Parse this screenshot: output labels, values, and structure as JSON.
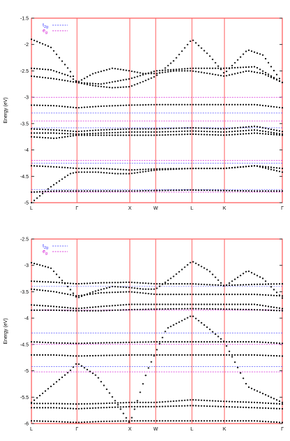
{
  "colors": {
    "frame": "#ff3030",
    "sympoint": "#ff6060",
    "bands": "#000000",
    "t2g": "#3a3aff",
    "eg": "#d000d0",
    "text": "#000000"
  },
  "chart_data": [
    {
      "type": "scatter",
      "ylabel": "Energy (eV)",
      "ylim": [
        -5,
        -1.5
      ],
      "yticks": [
        -5,
        -4.5,
        -4,
        -3.5,
        -3,
        -2.5,
        -2,
        -1.5
      ],
      "ytick_labels": [
        "-5",
        "-4.5",
        "-4",
        "-3.5",
        "-3",
        "-2.5",
        "-2",
        "-1.5"
      ],
      "xlim": [
        0,
        6.5
      ],
      "xticks": [
        0,
        1.18,
        2.55,
        3.22,
        4.16,
        5.0,
        6.5
      ],
      "xtick_labels": [
        "L",
        "Γ",
        "X",
        "W",
        "L",
        "K",
        "Γ"
      ],
      "legend": [
        {
          "label": "t",
          "sub": "2g",
          "color_key": "t2g"
        },
        {
          "label": "e",
          "sub": "g",
          "color_key": "eg"
        }
      ],
      "t2g_levels": [
        -3.3,
        -3.58,
        -4.25,
        -4.75
      ],
      "eg_levels": [
        -3.0,
        -3.45,
        -4.2,
        -4.8
      ],
      "series": [
        {
          "x": [
            0,
            0.5,
            1.0,
            1.18,
            1.6,
            2.1,
            2.55,
            2.9,
            3.22,
            3.7,
            4.16,
            4.6,
            5.0,
            5.6,
            6.0,
            6.5
          ],
          "y": [
            -1.9,
            -2.05,
            -2.5,
            -2.72,
            -2.78,
            -2.82,
            -2.8,
            -2.7,
            -2.6,
            -2.3,
            -1.9,
            -2.2,
            -2.55,
            -2.1,
            -2.2,
            -2.72
          ]
        },
        {
          "x": [
            0,
            0.5,
            1.0,
            1.18,
            1.6,
            2.1,
            2.55,
            2.9,
            3.22,
            3.7,
            4.16,
            4.6,
            5.0,
            5.6,
            6.0,
            6.5
          ],
          "y": [
            -2.45,
            -2.48,
            -2.6,
            -2.72,
            -2.55,
            -2.45,
            -2.5,
            -2.55,
            -2.55,
            -2.5,
            -2.5,
            -2.55,
            -2.6,
            -2.5,
            -2.55,
            -2.72
          ]
        },
        {
          "x": [
            0,
            0.6,
            1.18,
            1.8,
            2.55,
            3.22,
            4.16,
            5.0,
            5.8,
            6.5
          ],
          "y": [
            -2.6,
            -2.65,
            -2.72,
            -2.75,
            -2.65,
            -2.5,
            -2.45,
            -2.45,
            -2.42,
            -2.72
          ]
        },
        {
          "x": [
            0,
            0.6,
            1.18,
            1.8,
            2.55,
            3.22,
            4.16,
            5.0,
            5.8,
            6.5
          ],
          "y": [
            -3.15,
            -3.16,
            -3.2,
            -3.17,
            -3.15,
            -3.14,
            -3.14,
            -3.14,
            -3.14,
            -3.2
          ]
        },
        {
          "x": [
            0,
            0.6,
            1.18,
            1.8,
            2.55,
            3.22,
            4.16,
            5.0,
            5.8,
            6.5
          ],
          "y": [
            -3.6,
            -3.62,
            -3.65,
            -3.62,
            -3.6,
            -3.6,
            -3.58,
            -3.6,
            -3.55,
            -3.65
          ]
        },
        {
          "x": [
            0,
            0.6,
            1.18,
            1.8,
            2.55,
            3.22,
            4.16,
            5.0,
            5.8,
            6.5
          ],
          "y": [
            -3.68,
            -3.68,
            -3.7,
            -3.68,
            -3.66,
            -3.66,
            -3.64,
            -3.66,
            -3.62,
            -3.7
          ]
        },
        {
          "x": [
            0,
            0.6,
            1.18,
            1.8,
            2.55,
            3.22,
            4.16,
            5.0,
            5.8,
            6.5
          ],
          "y": [
            -3.75,
            -3.78,
            -3.72,
            -3.72,
            -3.72,
            -3.72,
            -3.7,
            -3.72,
            -3.68,
            -3.72
          ]
        },
        {
          "x": [
            0,
            0.6,
            1.18,
            1.8,
            2.55,
            3.22,
            4.16,
            5.0,
            5.8,
            6.5
          ],
          "y": [
            -4.3,
            -4.32,
            -4.35,
            -4.35,
            -4.38,
            -4.36,
            -4.35,
            -4.35,
            -4.3,
            -4.35
          ]
        },
        {
          "x": [
            0,
            0.6,
            1.18,
            1.8,
            2.55,
            3.22,
            4.16,
            5.0,
            5.8,
            6.5
          ],
          "y": [
            -4.8,
            -4.78,
            -4.78,
            -4.78,
            -4.78,
            -4.77,
            -4.76,
            -4.77,
            -4.78,
            -4.78
          ]
        },
        {
          "x": [
            0,
            0.5,
            1.0,
            1.18,
            1.7,
            2.2,
            2.55,
            3.22,
            4.16,
            5.0,
            5.8,
            6.5
          ],
          "y": [
            -5.0,
            -4.7,
            -4.45,
            -4.42,
            -4.42,
            -4.45,
            -4.45,
            -4.38,
            -4.35,
            -4.35,
            -4.3,
            -4.42
          ]
        }
      ]
    },
    {
      "type": "scatter",
      "ylabel": "Energy (eV)",
      "ylim": [
        -6,
        -2.5
      ],
      "yticks": [
        -6,
        -5.5,
        -5,
        -4.5,
        -4,
        -3.5,
        -3,
        -2.5
      ],
      "ytick_labels": [
        "-6",
        "-5.5",
        "-5",
        "-4.5",
        "-4",
        "-3.5",
        "-3",
        "-2.5"
      ],
      "xlim": [
        0,
        6.5
      ],
      "xticks": [
        0,
        1.18,
        2.55,
        3.22,
        4.16,
        5.0,
        6.5
      ],
      "xtick_labels": [
        "L",
        "Γ",
        "X",
        "W",
        "L",
        "K",
        "Γ"
      ],
      "legend": [
        {
          "label": "t",
          "sub": "2g",
          "color_key": "t2g"
        },
        {
          "label": "e",
          "sub": "g",
          "color_key": "eg"
        }
      ],
      "t2g_levels": [
        -3.4,
        -4.28,
        -4.92
      ],
      "eg_levels": [
        -3.85,
        -4.5,
        -5.02
      ],
      "series": [
        {
          "x": [
            0,
            0.5,
            1.0,
            1.18,
            1.6,
            2.1,
            2.55,
            2.9,
            3.22,
            3.7,
            4.16,
            4.6,
            5.0,
            5.6,
            6.0,
            6.5
          ],
          "y": [
            -2.95,
            -3.05,
            -3.45,
            -3.62,
            -3.5,
            -3.4,
            -3.42,
            -3.45,
            -3.45,
            -3.2,
            -2.92,
            -3.1,
            -3.4,
            -3.1,
            -3.25,
            -3.62
          ]
        },
        {
          "x": [
            0,
            0.6,
            1.18,
            1.8,
            2.55,
            3.22,
            4.16,
            5.0,
            5.8,
            6.5
          ],
          "y": [
            -3.3,
            -3.32,
            -3.35,
            -3.33,
            -3.32,
            -3.35,
            -3.35,
            -3.38,
            -3.36,
            -3.35
          ]
        },
        {
          "x": [
            0,
            0.6,
            1.18,
            1.8,
            2.55,
            3.22,
            4.16,
            5.0,
            5.8,
            6.5
          ],
          "y": [
            -3.45,
            -3.5,
            -3.58,
            -3.52,
            -3.5,
            -3.55,
            -3.55,
            -3.55,
            -3.55,
            -3.58
          ]
        },
        {
          "x": [
            0,
            0.6,
            1.18,
            1.8,
            2.55,
            3.22,
            4.16,
            5.0,
            5.8,
            6.5
          ],
          "y": [
            -3.75,
            -3.78,
            -3.82,
            -3.78,
            -3.74,
            -3.74,
            -3.74,
            -3.74,
            -3.74,
            -3.82
          ]
        },
        {
          "x": [
            0,
            0.6,
            1.18,
            1.8,
            2.55,
            3.22,
            4.16,
            5.0,
            5.8,
            6.5
          ],
          "y": [
            -3.85,
            -3.85,
            -3.86,
            -3.86,
            -3.84,
            -3.83,
            -3.82,
            -3.83,
            -3.84,
            -3.86
          ]
        },
        {
          "x": [
            0,
            0.6,
            1.18,
            1.8,
            2.55,
            3.22,
            4.16,
            5.0,
            5.8,
            6.5
          ],
          "y": [
            -4.45,
            -4.47,
            -4.48,
            -4.47,
            -4.46,
            -4.45,
            -4.45,
            -4.45,
            -4.45,
            -4.48
          ]
        },
        {
          "x": [
            0,
            0.6,
            1.18,
            1.8,
            2.55,
            3.22,
            4.16,
            5.0,
            5.8,
            6.5
          ],
          "y": [
            -4.7,
            -4.7,
            -4.72,
            -4.71,
            -4.7,
            -4.7,
            -4.7,
            -4.7,
            -4.7,
            -4.72
          ]
        },
        {
          "x": [
            0,
            0.5,
            1.0,
            1.18,
            1.7,
            2.2,
            2.55,
            3.0,
            3.5,
            4.16,
            4.6,
            5.0,
            5.6,
            6.5
          ],
          "y": [
            -5.6,
            -5.3,
            -5.0,
            -4.85,
            -5.1,
            -5.6,
            -6.0,
            -5.0,
            -4.2,
            -3.95,
            -4.2,
            -4.45,
            -5.3,
            -5.6
          ]
        },
        {
          "x": [
            0,
            0.6,
            1.18,
            1.8,
            2.55,
            3.22,
            4.16,
            5.0,
            5.8,
            6.5
          ],
          "y": [
            -5.62,
            -5.62,
            -5.63,
            -5.62,
            -5.6,
            -5.6,
            -5.55,
            -5.58,
            -5.6,
            -5.63
          ]
        },
        {
          "x": [
            0,
            0.6,
            1.18,
            1.8,
            2.55,
            3.22,
            4.16,
            5.0,
            5.8,
            6.5
          ],
          "y": [
            -5.7,
            -5.7,
            -5.72,
            -5.7,
            -5.68,
            -5.68,
            -5.66,
            -5.68,
            -5.7,
            -5.72
          ]
        },
        {
          "x": [
            0,
            0.6,
            1.18,
            1.8,
            2.55,
            3.22,
            4.16,
            5.0,
            5.8,
            6.5
          ],
          "y": [
            -5.95,
            -5.96,
            -5.98,
            -5.96,
            -5.95,
            -5.95,
            -5.95,
            -5.95,
            -5.95,
            -5.98
          ]
        }
      ]
    }
  ]
}
